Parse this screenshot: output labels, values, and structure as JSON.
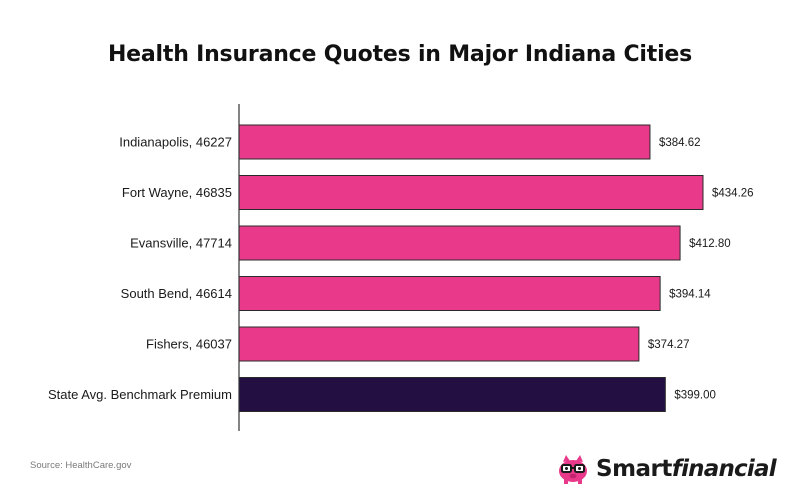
{
  "title": "Health Insurance Quotes in Major Indiana Cities",
  "source": "Source: HealthCare.gov",
  "brand": {
    "name_part1": "Smart",
    "name_part2": "financial",
    "icon": "piggy-bank-glasses-icon"
  },
  "colors": {
    "city_bar": "#e8398a",
    "benchmark_bar": "#230f42",
    "axis": "#333333",
    "brand_pink": "#e8398a"
  },
  "chart_data": {
    "type": "bar",
    "orientation": "horizontal",
    "title": "Health Insurance Quotes in Major Indiana Cities",
    "xlabel": "",
    "ylabel": "",
    "xlim": [
      0,
      460
    ],
    "grid": false,
    "legend": "none",
    "value_prefix": "$",
    "categories": [
      "Indianapolis, 46227",
      "Fort Wayne, 46835",
      "Evansville, 47714",
      "South Bend, 46614",
      "Fishers, 46037",
      "State Avg. Benchmark Premium"
    ],
    "values": [
      384.62,
      434.26,
      412.8,
      394.14,
      374.27,
      399.0
    ],
    "value_labels": [
      "$384.62",
      "$434.26",
      "$412.80",
      "$394.14",
      "$374.27",
      "$399.00"
    ],
    "highlight_category": "State Avg. Benchmark Premium"
  }
}
